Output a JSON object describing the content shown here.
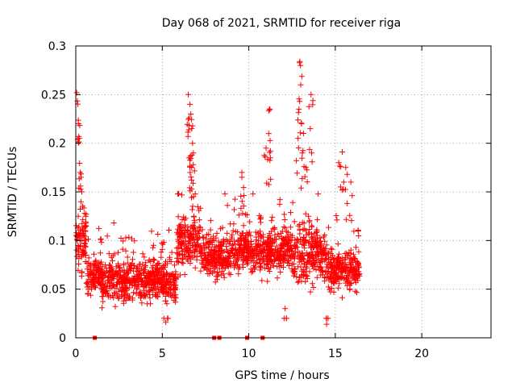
{
  "chart_data": {
    "type": "scatter",
    "title": "Day 068 of 2021, SRMTID for receiver riga",
    "xlabel": "GPS time / hours",
    "ylabel": "SRMTID / TECUs",
    "xlim": [
      0,
      24
    ],
    "ylim": [
      0,
      0.3
    ],
    "xticks": [
      0,
      5,
      10,
      15,
      20
    ],
    "xtick_labels": [
      "0",
      "5",
      "10",
      "15",
      "20"
    ],
    "yticks": [
      0,
      0.05,
      0.1,
      0.15,
      0.2,
      0.25,
      0.3
    ],
    "ytick_labels": [
      "0",
      "0.05",
      "0.1",
      "0.15",
      "0.2",
      "0.25",
      "0.3"
    ],
    "grid": true,
    "marker": "+",
    "color": "#ff0000",
    "zero_marks_x": [
      1.1,
      8.0,
      8.3,
      9.9,
      10.8
    ],
    "segments": [
      {
        "t0": 0.0,
        "t1": 0.6,
        "base": 0.1,
        "spread": 0.05
      },
      {
        "t0": 0.6,
        "t1": 1.5,
        "base": 0.065,
        "spread": 0.03
      },
      {
        "t0": 1.5,
        "t1": 5.8,
        "base": 0.058,
        "spread": 0.035
      },
      {
        "t0": 5.8,
        "t1": 7.2,
        "base": 0.1,
        "spread": 0.05
      },
      {
        "t0": 7.2,
        "t1": 9.0,
        "base": 0.085,
        "spread": 0.04
      },
      {
        "t0": 9.0,
        "t1": 12.5,
        "base": 0.09,
        "spread": 0.04
      },
      {
        "t0": 12.5,
        "t1": 14.5,
        "base": 0.085,
        "spread": 0.05
      },
      {
        "t0": 14.5,
        "t1": 16.4,
        "base": 0.07,
        "spread": 0.035
      }
    ],
    "spikes": [
      {
        "t": 0.05,
        "y": 0.252
      },
      {
        "t": 0.15,
        "y": 0.22
      },
      {
        "t": 0.2,
        "y": 0.205
      },
      {
        "t": 0.25,
        "y": 0.17
      },
      {
        "t": 0.3,
        "y": 0.165
      },
      {
        "t": 0.35,
        "y": 0.15
      },
      {
        "t": 6.5,
        "y": 0.25
      },
      {
        "t": 6.6,
        "y": 0.24
      },
      {
        "t": 6.65,
        "y": 0.23
      },
      {
        "t": 6.7,
        "y": 0.215
      },
      {
        "t": 6.75,
        "y": 0.2
      },
      {
        "t": 6.8,
        "y": 0.19
      },
      {
        "t": 6.55,
        "y": 0.185
      },
      {
        "t": 6.7,
        "y": 0.175
      },
      {
        "t": 9.6,
        "y": 0.17
      },
      {
        "t": 9.6,
        "y": 0.165
      },
      {
        "t": 11.2,
        "y": 0.235
      },
      {
        "t": 11.15,
        "y": 0.21
      },
      {
        "t": 11.0,
        "y": 0.195
      },
      {
        "t": 11.25,
        "y": 0.185
      },
      {
        "t": 12.95,
        "y": 0.284
      },
      {
        "t": 13.0,
        "y": 0.26
      },
      {
        "t": 12.9,
        "y": 0.235
      },
      {
        "t": 13.05,
        "y": 0.22
      },
      {
        "t": 12.85,
        "y": 0.205
      },
      {
        "t": 13.1,
        "y": 0.19
      },
      {
        "t": 13.3,
        "y": 0.175
      },
      {
        "t": 13.6,
        "y": 0.25
      },
      {
        "t": 13.55,
        "y": 0.215
      },
      {
        "t": 15.4,
        "y": 0.191
      },
      {
        "t": 15.2,
        "y": 0.18
      },
      {
        "t": 15.6,
        "y": 0.175
      },
      {
        "t": 15.9,
        "y": 0.16
      },
      {
        "t": 14.5,
        "y": 0.014
      },
      {
        "t": 5.2,
        "y": 0.016
      },
      {
        "t": 12.1,
        "y": 0.03
      }
    ]
  }
}
